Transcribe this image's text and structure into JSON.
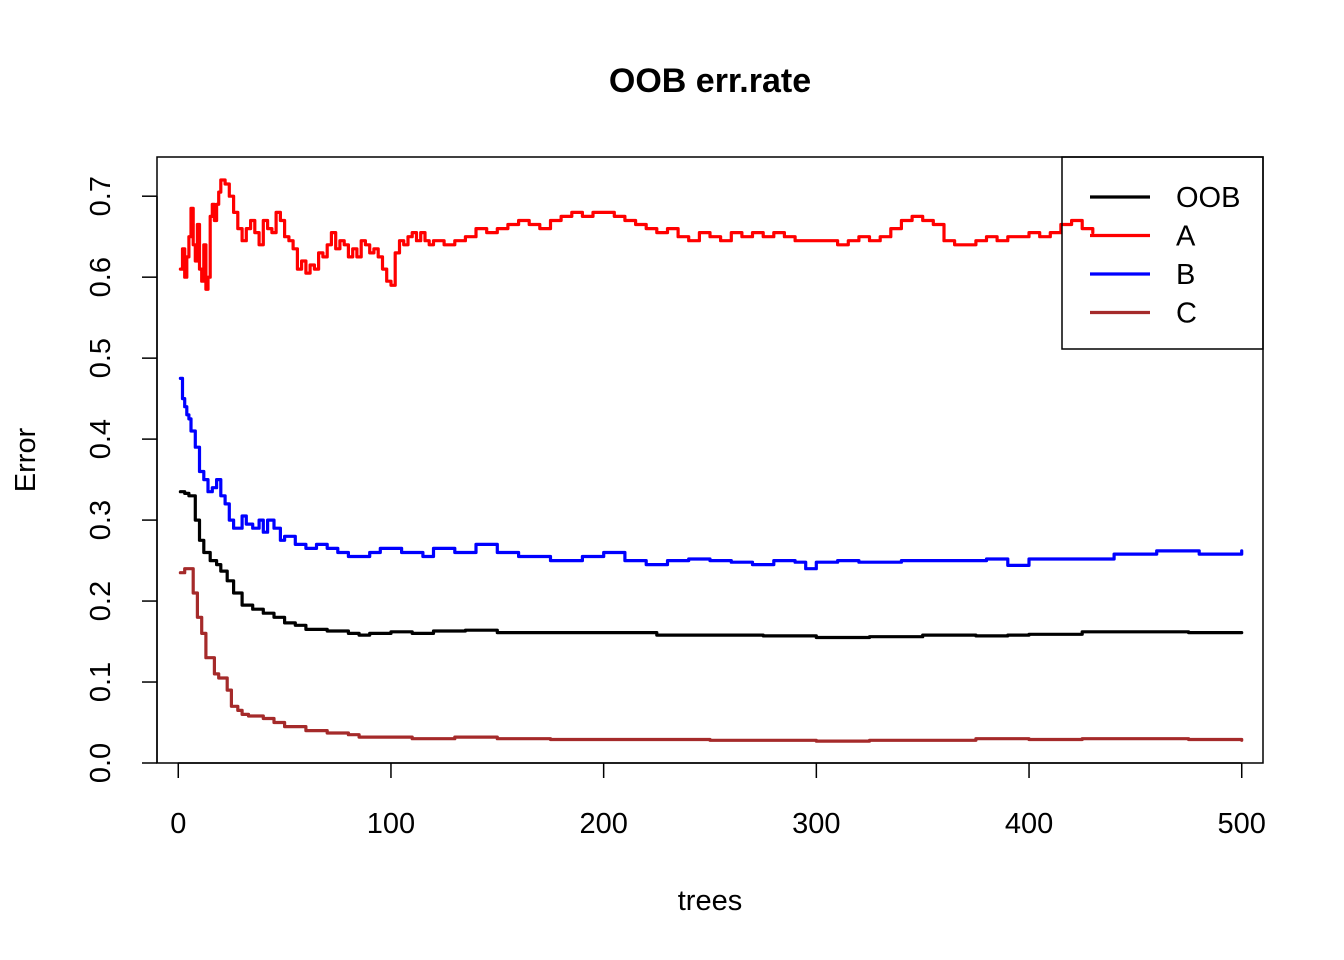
{
  "chart_data": {
    "type": "line",
    "title": "OOB err.rate",
    "xlabel": "trees",
    "ylabel": "Error",
    "xlim": [
      -10,
      510
    ],
    "ylim": [
      0.0,
      0.72
    ],
    "xticks": [
      0,
      100,
      200,
      300,
      400,
      500
    ],
    "xtick_labels": [
      "0",
      "100",
      "200",
      "300",
      "400",
      "500"
    ],
    "yticks": [
      0.0,
      0.1,
      0.2,
      0.3,
      0.4,
      0.5,
      0.6,
      0.7
    ],
    "ytick_labels": [
      "0.0",
      "0.1",
      "0.2",
      "0.3",
      "0.4",
      "0.5",
      "0.6",
      "0.7"
    ],
    "grid": false,
    "legend_position": "top-right",
    "series": [
      {
        "name": "OOB",
        "color": "#000000",
        "x": [
          1,
          3,
          5,
          8,
          10,
          12,
          15,
          18,
          20,
          23,
          26,
          30,
          35,
          40,
          45,
          50,
          55,
          60,
          70,
          80,
          85,
          90,
          100,
          110,
          120,
          135,
          150,
          175,
          200,
          225,
          250,
          275,
          300,
          325,
          350,
          375,
          390,
          400,
          425,
          450,
          475,
          500
        ],
        "y": [
          0.335,
          0.333,
          0.33,
          0.3,
          0.275,
          0.26,
          0.25,
          0.245,
          0.237,
          0.225,
          0.21,
          0.195,
          0.19,
          0.185,
          0.18,
          0.173,
          0.17,
          0.165,
          0.163,
          0.16,
          0.158,
          0.16,
          0.162,
          0.16,
          0.163,
          0.164,
          0.161,
          0.161,
          0.161,
          0.158,
          0.158,
          0.157,
          0.155,
          0.156,
          0.158,
          0.157,
          0.158,
          0.159,
          0.162,
          0.162,
          0.161,
          0.161
        ]
      },
      {
        "name": "A",
        "color": "#ff0000",
        "x": [
          1,
          2,
          3,
          4,
          5,
          6,
          7,
          8,
          9,
          10,
          11,
          12,
          13,
          14,
          15,
          16,
          17,
          18,
          19,
          20,
          21,
          22,
          24,
          26,
          28,
          30,
          32,
          34,
          36,
          38,
          40,
          42,
          44,
          46,
          48,
          50,
          52,
          54,
          56,
          58,
          60,
          62,
          64,
          66,
          68,
          70,
          72,
          74,
          76,
          78,
          80,
          82,
          84,
          86,
          88,
          90,
          92,
          94,
          96,
          98,
          100,
          102,
          104,
          106,
          108,
          110,
          112,
          114,
          116,
          118,
          120,
          125,
          130,
          135,
          140,
          145,
          150,
          155,
          160,
          165,
          170,
          175,
          180,
          185,
          190,
          195,
          200,
          205,
          210,
          215,
          220,
          225,
          230,
          235,
          240,
          245,
          250,
          255,
          260,
          265,
          270,
          275,
          280,
          285,
          290,
          295,
          300,
          305,
          310,
          315,
          320,
          325,
          330,
          335,
          340,
          345,
          350,
          355,
          360,
          365,
          370,
          375,
          380,
          385,
          390,
          395,
          400,
          405,
          410,
          415,
          420,
          425,
          430
        ],
        "y": [
          0.61,
          0.635,
          0.6,
          0.625,
          0.65,
          0.685,
          0.64,
          0.62,
          0.665,
          0.61,
          0.595,
          0.64,
          0.585,
          0.6,
          0.675,
          0.69,
          0.67,
          0.69,
          0.705,
          0.72,
          0.72,
          0.715,
          0.7,
          0.68,
          0.66,
          0.645,
          0.66,
          0.67,
          0.655,
          0.64,
          0.67,
          0.66,
          0.655,
          0.68,
          0.67,
          0.65,
          0.645,
          0.635,
          0.61,
          0.62,
          0.605,
          0.615,
          0.61,
          0.63,
          0.625,
          0.64,
          0.655,
          0.635,
          0.645,
          0.64,
          0.625,
          0.635,
          0.625,
          0.645,
          0.64,
          0.63,
          0.635,
          0.625,
          0.61,
          0.595,
          0.59,
          0.63,
          0.645,
          0.64,
          0.65,
          0.655,
          0.645,
          0.655,
          0.645,
          0.64,
          0.645,
          0.64,
          0.645,
          0.65,
          0.66,
          0.655,
          0.66,
          0.665,
          0.67,
          0.665,
          0.66,
          0.67,
          0.675,
          0.68,
          0.675,
          0.68,
          0.68,
          0.675,
          0.67,
          0.665,
          0.66,
          0.655,
          0.66,
          0.65,
          0.645,
          0.655,
          0.65,
          0.645,
          0.655,
          0.65,
          0.655,
          0.65,
          0.655,
          0.65,
          0.645,
          0.645,
          0.645,
          0.645,
          0.64,
          0.645,
          0.65,
          0.645,
          0.65,
          0.66,
          0.67,
          0.675,
          0.67,
          0.665,
          0.645,
          0.64,
          0.64,
          0.645,
          0.65,
          0.645,
          0.65,
          0.65,
          0.655,
          0.65,
          0.655,
          0.665,
          0.67,
          0.66,
          0.655
        ]
      },
      {
        "name": "B",
        "color": "#0000ff",
        "x": [
          1,
          2,
          3,
          4,
          5,
          6,
          8,
          10,
          12,
          14,
          16,
          18,
          20,
          22,
          24,
          26,
          28,
          30,
          32,
          35,
          38,
          40,
          42,
          45,
          48,
          50,
          55,
          60,
          65,
          70,
          75,
          80,
          85,
          90,
          95,
          100,
          105,
          110,
          115,
          120,
          130,
          140,
          150,
          160,
          175,
          190,
          200,
          210,
          220,
          230,
          240,
          250,
          260,
          270,
          280,
          290,
          295,
          300,
          310,
          320,
          340,
          360,
          380,
          390,
          400,
          420,
          440,
          460,
          480,
          500
        ],
        "y": [
          0.475,
          0.45,
          0.44,
          0.43,
          0.425,
          0.41,
          0.39,
          0.36,
          0.35,
          0.335,
          0.34,
          0.35,
          0.33,
          0.32,
          0.3,
          0.29,
          0.29,
          0.305,
          0.295,
          0.29,
          0.3,
          0.285,
          0.3,
          0.29,
          0.275,
          0.28,
          0.27,
          0.265,
          0.27,
          0.265,
          0.26,
          0.255,
          0.255,
          0.26,
          0.265,
          0.265,
          0.26,
          0.26,
          0.255,
          0.265,
          0.26,
          0.27,
          0.26,
          0.255,
          0.25,
          0.255,
          0.26,
          0.25,
          0.245,
          0.25,
          0.252,
          0.25,
          0.248,
          0.245,
          0.25,
          0.248,
          0.24,
          0.248,
          0.25,
          0.248,
          0.25,
          0.25,
          0.252,
          0.244,
          0.252,
          0.252,
          0.258,
          0.262,
          0.258,
          0.262
        ]
      },
      {
        "name": "C",
        "color": "#a52a2a",
        "x": [
          1,
          3,
          5,
          7,
          9,
          11,
          13,
          15,
          17,
          19,
          21,
          23,
          25,
          28,
          30,
          33,
          36,
          40,
          45,
          50,
          55,
          60,
          70,
          80,
          85,
          90,
          100,
          110,
          120,
          130,
          150,
          175,
          200,
          225,
          250,
          275,
          300,
          325,
          350,
          375,
          400,
          425,
          450,
          475,
          500
        ],
        "y": [
          0.235,
          0.24,
          0.24,
          0.21,
          0.18,
          0.16,
          0.13,
          0.13,
          0.11,
          0.105,
          0.105,
          0.09,
          0.07,
          0.065,
          0.06,
          0.058,
          0.058,
          0.055,
          0.05,
          0.045,
          0.045,
          0.04,
          0.037,
          0.035,
          0.032,
          0.032,
          0.032,
          0.03,
          0.03,
          0.032,
          0.03,
          0.029,
          0.029,
          0.029,
          0.028,
          0.028,
          0.027,
          0.028,
          0.028,
          0.03,
          0.029,
          0.03,
          0.03,
          0.029,
          0.028
        ]
      }
    ]
  }
}
